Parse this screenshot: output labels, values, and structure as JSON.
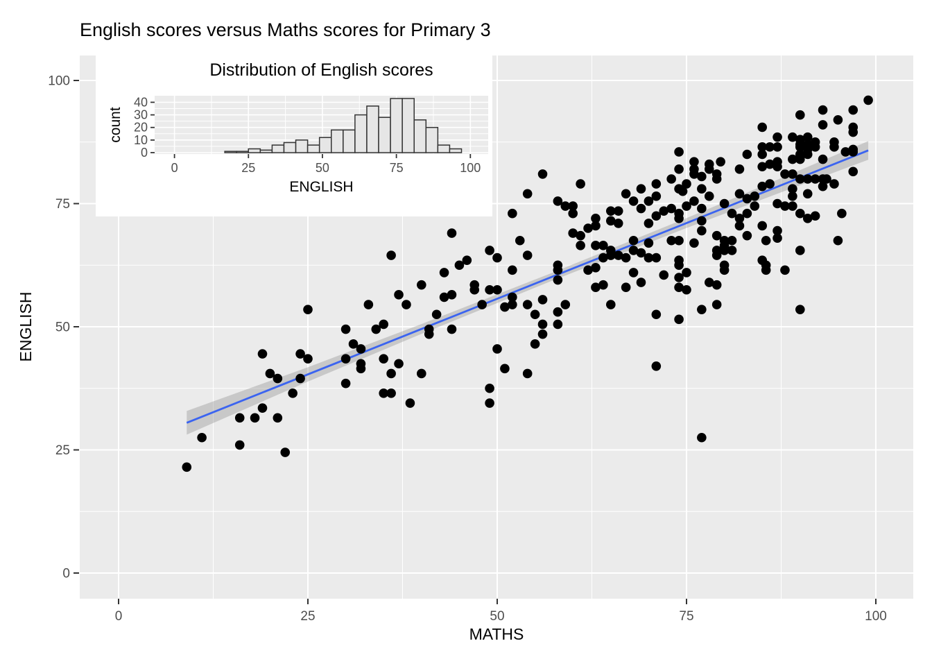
{
  "title": "English scores versus Maths scores for Primary 3",
  "colors": {
    "background": "#FFFFFF",
    "panel": "#EBEBEB",
    "grid": "#FFFFFF",
    "point": "#000000",
    "trend_line": "#3B64F0",
    "band": "#888888",
    "band_opacity": 0.35,
    "bar_fill": "#E6E6E6",
    "bar_stroke": "#333333",
    "tick_mark": "#333333",
    "tick_label": "#4D4D4D",
    "text": "#000000"
  },
  "chart_data": [
    {
      "type": "scatter",
      "title": "English scores versus Maths scores for Primary 3",
      "xlabel": "MATHS",
      "ylabel": "ENGLISH",
      "x_ticks": [
        0,
        25,
        50,
        75,
        100
      ],
      "y_ticks": [
        0,
        25,
        50,
        75,
        100
      ],
      "xlim": [
        -5,
        105
      ],
      "ylim": [
        -5,
        105
      ],
      "grid": "white major+minor on gray panel",
      "legend": "none",
      "trend": {
        "type": "linear-smooth",
        "x1": 9,
        "y1": 30.5,
        "x2": 99,
        "y2": 85.8
      },
      "band_halfwidth": [
        [
          9,
          2.4
        ],
        [
          25,
          1.45
        ],
        [
          40,
          1.0
        ],
        [
          57,
          0.8
        ],
        [
          75,
          1.0
        ],
        [
          88,
          1.45
        ],
        [
          99,
          1.9
        ]
      ],
      "points": [
        [
          9,
          21.5
        ],
        [
          11,
          27.5
        ],
        [
          16,
          26
        ],
        [
          16,
          31.5
        ],
        [
          18,
          31.5
        ],
        [
          21,
          31.5
        ],
        [
          22,
          24.5
        ],
        [
          19,
          33.5
        ],
        [
          19,
          44.5
        ],
        [
          20,
          40.5
        ],
        [
          21,
          39.5
        ],
        [
          23,
          36.5
        ],
        [
          24,
          39.5
        ],
        [
          24,
          44.5
        ],
        [
          25,
          43.5
        ],
        [
          25,
          53.5
        ],
        [
          30,
          38.5
        ],
        [
          30,
          43.5
        ],
        [
          30,
          49.5
        ],
        [
          31,
          46.5
        ],
        [
          32,
          41.5
        ],
        [
          32,
          42.5
        ],
        [
          32,
          45.5
        ],
        [
          33,
          54.5
        ],
        [
          34,
          49.5
        ],
        [
          35,
          36.5
        ],
        [
          35,
          43.5
        ],
        [
          35,
          50.5
        ],
        [
          36,
          36.5
        ],
        [
          36,
          40.5
        ],
        [
          36,
          64.5
        ],
        [
          37,
          42.5
        ],
        [
          37,
          56.5
        ],
        [
          38,
          54.5
        ],
        [
          38.5,
          34.5
        ],
        [
          40,
          40.5
        ],
        [
          40,
          58.5
        ],
        [
          41,
          48.5
        ],
        [
          41,
          49.5
        ],
        [
          42,
          52.5
        ],
        [
          43,
          56
        ],
        [
          43,
          61
        ],
        [
          44,
          49.5
        ],
        [
          44,
          56.5
        ],
        [
          44,
          69
        ],
        [
          45,
          62.5
        ],
        [
          46,
          63.5
        ],
        [
          47,
          57.5
        ],
        [
          47,
          58.5
        ],
        [
          48,
          54.5
        ],
        [
          49,
          34.5
        ],
        [
          49,
          37.5
        ],
        [
          49,
          57.5
        ],
        [
          49,
          65.5
        ],
        [
          50,
          45.5
        ],
        [
          50,
          57.5
        ],
        [
          50,
          64
        ],
        [
          51,
          41.5
        ],
        [
          51,
          54
        ],
        [
          52,
          54.5
        ],
        [
          52,
          56
        ],
        [
          52,
          61.5
        ],
        [
          53,
          67.5
        ],
        [
          54,
          40.5
        ],
        [
          54,
          54.5
        ],
        [
          54,
          64.5
        ],
        [
          55,
          46.5
        ],
        [
          55,
          52.5
        ],
        [
          56,
          48.5
        ],
        [
          56,
          50.5
        ],
        [
          56,
          55.5
        ],
        [
          58,
          50.5
        ],
        [
          58,
          53
        ],
        [
          58,
          59.5
        ],
        [
          58,
          61.5
        ],
        [
          58,
          62.5
        ],
        [
          59,
          54.5
        ],
        [
          61,
          66.5
        ],
        [
          62,
          61.5
        ],
        [
          63,
          58
        ],
        [
          63,
          62
        ],
        [
          63,
          66.5
        ],
        [
          64,
          58.5
        ],
        [
          64,
          64
        ],
        [
          64,
          66.5
        ],
        [
          65,
          54.5
        ],
        [
          65,
          64.5
        ],
        [
          65,
          65.5
        ],
        [
          66,
          64.5
        ],
        [
          67,
          58
        ],
        [
          67,
          64
        ],
        [
          68,
          61
        ],
        [
          68,
          65.5
        ],
        [
          68,
          67.5
        ],
        [
          69,
          59
        ],
        [
          69,
          65
        ],
        [
          70,
          64
        ],
        [
          70,
          67
        ],
        [
          71,
          42
        ],
        [
          71,
          52.5
        ],
        [
          71,
          64
        ],
        [
          72,
          60.5
        ],
        [
          73,
          67.5
        ],
        [
          74,
          51.5
        ],
        [
          74,
          58
        ],
        [
          74,
          60
        ],
        [
          74,
          62.5
        ],
        [
          74,
          63.5
        ],
        [
          74,
          67.5
        ],
        [
          75,
          57.5
        ],
        [
          75,
          61
        ],
        [
          76,
          67
        ],
        [
          77,
          53.5
        ],
        [
          77,
          27.5
        ],
        [
          52,
          73
        ],
        [
          54,
          77
        ],
        [
          56,
          81
        ],
        [
          58,
          75.5
        ],
        [
          59,
          74.5
        ],
        [
          60,
          69
        ],
        [
          60,
          73
        ],
        [
          60,
          74.5
        ],
        [
          61,
          68.5
        ],
        [
          61,
          79
        ],
        [
          62,
          70
        ],
        [
          63,
          70.5
        ],
        [
          63,
          72
        ],
        [
          65,
          71.5
        ],
        [
          65,
          73.5
        ],
        [
          66,
          71
        ],
        [
          66,
          73.5
        ],
        [
          67,
          77
        ],
        [
          68,
          75.5
        ],
        [
          69,
          74
        ],
        [
          69,
          78
        ],
        [
          70,
          71
        ],
        [
          70,
          75.5
        ],
        [
          71,
          72.5
        ],
        [
          71,
          76.5
        ],
        [
          71,
          79
        ],
        [
          72,
          73.5
        ],
        [
          73,
          74
        ],
        [
          73,
          80
        ],
        [
          74,
          72
        ],
        [
          74,
          73
        ],
        [
          74,
          78
        ],
        [
          74,
          82
        ],
        [
          74,
          85.5
        ],
        [
          74.5,
          77.5
        ],
        [
          75,
          74.5
        ],
        [
          75,
          79
        ],
        [
          76,
          75.5
        ],
        [
          76,
          81
        ],
        [
          76,
          82
        ],
        [
          76,
          83.5
        ],
        [
          77,
          71.5
        ],
        [
          77,
          74
        ],
        [
          77,
          78
        ],
        [
          77,
          80.5
        ],
        [
          77,
          69.5
        ],
        [
          78,
          76.5
        ],
        [
          78,
          82
        ],
        [
          78,
          83
        ],
        [
          79,
          80
        ],
        [
          79,
          81
        ],
        [
          79.5,
          83.5
        ],
        [
          80,
          75
        ],
        [
          81,
          73
        ],
        [
          82,
          70.5
        ],
        [
          82,
          72
        ],
        [
          82,
          77
        ],
        [
          82,
          82
        ],
        [
          83,
          73
        ],
        [
          83,
          76
        ],
        [
          83,
          85
        ],
        [
          84,
          74.5
        ],
        [
          84,
          76.5
        ],
        [
          85,
          70.5
        ],
        [
          85,
          78.5
        ],
        [
          85,
          82.5
        ],
        [
          85,
          85
        ],
        [
          85,
          86.5
        ],
        [
          85,
          90.5
        ],
        [
          86,
          79
        ],
        [
          86,
          83
        ],
        [
          86,
          86.5
        ],
        [
          87,
          69.5
        ],
        [
          87,
          75
        ],
        [
          87,
          82.5
        ],
        [
          87,
          83.5
        ],
        [
          87,
          86.5
        ],
        [
          87,
          88.5
        ],
        [
          88,
          74.5
        ],
        [
          88,
          81
        ],
        [
          89,
          74.5
        ],
        [
          89,
          76.5
        ],
        [
          89,
          78
        ],
        [
          89,
          81
        ],
        [
          89,
          84
        ],
        [
          89,
          88.5
        ],
        [
          90,
          73
        ],
        [
          90,
          80
        ],
        [
          90,
          84
        ],
        [
          90,
          85
        ],
        [
          90,
          86.5
        ],
        [
          90,
          87
        ],
        [
          90,
          88
        ],
        [
          90,
          93
        ],
        [
          91,
          72
        ],
        [
          91,
          77
        ],
        [
          91,
          80
        ],
        [
          91,
          85
        ],
        [
          91,
          86
        ],
        [
          91,
          87
        ],
        [
          91,
          88.5
        ],
        [
          92,
          72.5
        ],
        [
          92,
          80
        ],
        [
          92,
          86.5
        ],
        [
          92,
          87.5
        ],
        [
          93,
          78.5
        ],
        [
          93,
          80
        ],
        [
          93,
          84
        ],
        [
          93,
          91
        ],
        [
          93,
          94
        ],
        [
          93.5,
          80
        ],
        [
          94.5,
          79
        ],
        [
          94.5,
          86.5
        ],
        [
          94.5,
          87.5
        ],
        [
          95,
          92
        ],
        [
          95.5,
          73
        ],
        [
          96,
          85.5
        ],
        [
          97,
          81.5
        ],
        [
          97,
          85.5
        ],
        [
          97,
          86
        ],
        [
          97,
          89.5
        ],
        [
          97,
          90.5
        ],
        [
          97,
          94
        ],
        [
          99,
          96
        ],
        [
          79,
          68.5
        ],
        [
          80,
          67.5
        ],
        [
          81,
          67.5
        ],
        [
          79,
          65.5
        ],
        [
          80,
          65.5
        ],
        [
          81,
          65.5
        ],
        [
          79,
          64.5
        ],
        [
          80,
          66.5
        ],
        [
          83,
          68.5
        ],
        [
          85.5,
          67.5
        ],
        [
          87,
          68
        ],
        [
          95,
          67.5
        ],
        [
          90,
          65.5
        ],
        [
          85,
          63.5
        ],
        [
          85.5,
          62.5
        ],
        [
          85.5,
          61.5
        ],
        [
          80,
          62.5
        ],
        [
          80,
          61.5
        ],
        [
          88,
          61.5
        ],
        [
          78,
          59
        ],
        [
          79,
          58.5
        ],
        [
          79,
          54.5
        ],
        [
          90,
          53.5
        ]
      ]
    },
    {
      "type": "histogram",
      "title": "Distribution of English scores",
      "xlabel": "ENGLISH",
      "ylabel": "count",
      "x_ticks": [
        0,
        25,
        50,
        75,
        100
      ],
      "y_ticks": [
        0,
        10,
        20,
        30,
        40
      ],
      "xlim": [
        -7,
        106
      ],
      "ylim": [
        0,
        45
      ],
      "bin_start": 17,
      "bin_width": 4,
      "counts": [
        1,
        1,
        3,
        2,
        6,
        8,
        10,
        6,
        12,
        18,
        18,
        30,
        37,
        28,
        43,
        43,
        26,
        20,
        6,
        3
      ]
    }
  ]
}
